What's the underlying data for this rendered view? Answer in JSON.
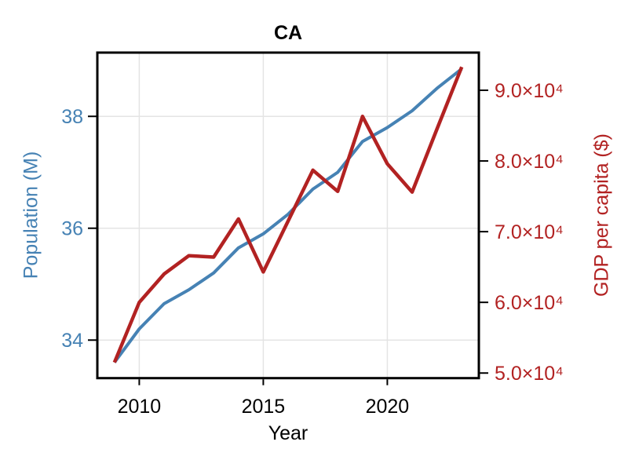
{
  "title": "CA",
  "chart_data": {
    "type": "line",
    "title": "CA",
    "xlabel": "Year",
    "ylabel_left": "Population (M)",
    "ylabel_right": "GDP per capita ($)",
    "grid": true,
    "legend": "none",
    "x": [
      2009,
      2010,
      2011,
      2012,
      2013,
      2014,
      2015,
      2016,
      2017,
      2018,
      2019,
      2020,
      2021,
      2022,
      2023
    ],
    "series": [
      {
        "name": "Population (M)",
        "axis": "left",
        "color": "#4682B4",
        "line_width": 4,
        "values": [
          33.6,
          34.2,
          34.65,
          34.9,
          35.2,
          35.65,
          35.9,
          36.25,
          36.7,
          37.0,
          37.55,
          37.8,
          38.1,
          38.5,
          38.85
        ]
      },
      {
        "name": "GDP per capita ($)",
        "axis": "right",
        "color": "#B22222",
        "line_width": 4.5,
        "values": [
          51500,
          60000,
          64000,
          66600,
          66400,
          71800,
          64300,
          71500,
          78700,
          75700,
          86300,
          79600,
          75600,
          84500,
          93300
        ]
      }
    ],
    "xlim": [
      2008.31,
      2023.69
    ],
    "ylim_left": [
      33.32,
      39.14
    ],
    "ylim_right": [
      49280,
      95330
    ],
    "x_ticks": [
      2010,
      2015,
      2020
    ],
    "x_tick_labels": [
      "2010",
      "2015",
      "2020"
    ],
    "y_ticks_left": [
      34,
      36,
      38
    ],
    "y_tick_labels_left": [
      "34",
      "36",
      "38"
    ],
    "y_ticks_right": [
      50000,
      60000,
      70000,
      80000,
      90000
    ],
    "y_tick_labels_right": [
      "5.0×10⁴",
      "6.0×10⁴",
      "7.0×10⁴",
      "8.0×10⁴",
      "9.0×10⁴"
    ],
    "colors": {
      "left_axis": "#4682B4",
      "right_axis": "#B22222",
      "grid": "#E4E4E4",
      "spine": "#000000",
      "title": "#000000",
      "background": "#FFFFFF"
    }
  }
}
